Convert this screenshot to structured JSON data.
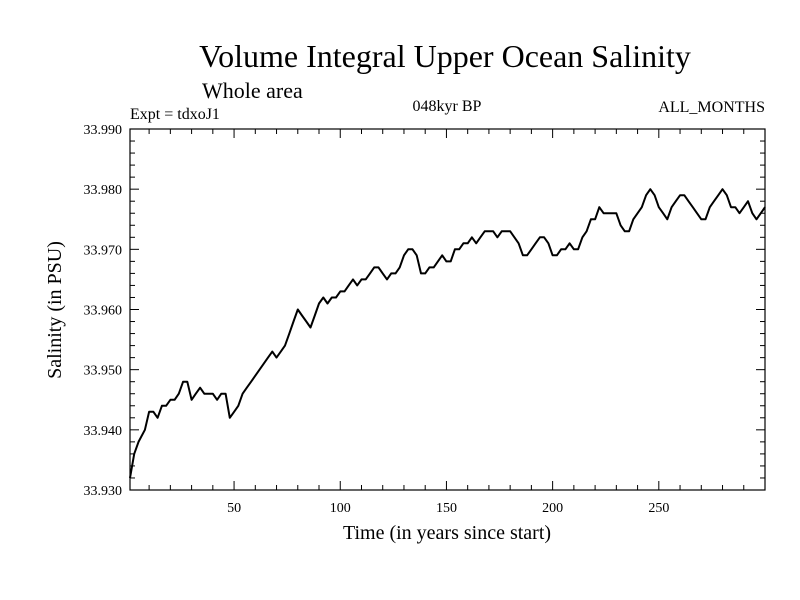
{
  "chart_data": {
    "type": "line",
    "title": "Volume Integral Upper Ocean Salinity",
    "subtitle": "Whole area",
    "experiment": "Expt = tdxoJ1",
    "period": "048kyr BP",
    "months": "ALL_MONTHS",
    "xlabel": "Time (in years since start)",
    "ylabel": "Salinity (in PSU)",
    "xlim": [
      1,
      300
    ],
    "ylim": [
      33.93,
      33.99
    ],
    "x_ticks": [
      50,
      100,
      150,
      200,
      250
    ],
    "x_tick_labels": [
      "50",
      "100",
      "150",
      "200",
      "250"
    ],
    "y_ticks": [
      33.93,
      33.94,
      33.95,
      33.96,
      33.97,
      33.98,
      33.99
    ],
    "y_tick_labels": [
      "33.930",
      "33.940",
      "33.950",
      "33.960",
      "33.970",
      "33.980",
      "33.990"
    ],
    "grid": false,
    "series": [
      {
        "name": "Salinity",
        "color": "#000000",
        "x": [
          1,
          3,
          5,
          8,
          10,
          12,
          14,
          16,
          18,
          20,
          22,
          24,
          26,
          28,
          30,
          32,
          34,
          36,
          38,
          40,
          42,
          44,
          46,
          48,
          50,
          52,
          54,
          56,
          58,
          60,
          62,
          64,
          66,
          68,
          70,
          72,
          74,
          76,
          78,
          80,
          82,
          84,
          86,
          88,
          90,
          92,
          94,
          96,
          98,
          100,
          102,
          104,
          106,
          108,
          110,
          112,
          114,
          116,
          118,
          120,
          122,
          124,
          126,
          128,
          130,
          132,
          134,
          136,
          138,
          140,
          142,
          144,
          146,
          148,
          150,
          152,
          154,
          156,
          158,
          160,
          162,
          164,
          166,
          168,
          170,
          172,
          174,
          176,
          178,
          180,
          182,
          184,
          186,
          188,
          190,
          192,
          194,
          196,
          198,
          200,
          202,
          204,
          206,
          208,
          210,
          212,
          214,
          216,
          218,
          220,
          222,
          224,
          226,
          228,
          230,
          232,
          234,
          236,
          238,
          240,
          242,
          244,
          246,
          248,
          250,
          252,
          254,
          256,
          258,
          260,
          262,
          264,
          266,
          268,
          270,
          272,
          274,
          276,
          278,
          280,
          282,
          284,
          286,
          288,
          290,
          292,
          294,
          296,
          298,
          300
        ],
        "y": [
          33.932,
          33.936,
          33.938,
          33.94,
          33.943,
          33.943,
          33.942,
          33.944,
          33.944,
          33.945,
          33.945,
          33.946,
          33.948,
          33.948,
          33.945,
          33.946,
          33.947,
          33.946,
          33.946,
          33.946,
          33.945,
          33.946,
          33.946,
          33.942,
          33.943,
          33.944,
          33.946,
          33.947,
          33.948,
          33.949,
          33.95,
          33.951,
          33.952,
          33.953,
          33.952,
          33.953,
          33.954,
          33.956,
          33.958,
          33.96,
          33.959,
          33.958,
          33.957,
          33.959,
          33.961,
          33.962,
          33.961,
          33.962,
          33.962,
          33.963,
          33.963,
          33.964,
          33.965,
          33.964,
          33.965,
          33.965,
          33.966,
          33.967,
          33.967,
          33.966,
          33.965,
          33.966,
          33.966,
          33.967,
          33.969,
          33.97,
          33.97,
          33.969,
          33.966,
          33.966,
          33.967,
          33.967,
          33.968,
          33.969,
          33.968,
          33.968,
          33.97,
          33.97,
          33.971,
          33.971,
          33.972,
          33.971,
          33.972,
          33.973,
          33.973,
          33.973,
          33.972,
          33.973,
          33.973,
          33.973,
          33.972,
          33.971,
          33.969,
          33.969,
          33.97,
          33.971,
          33.972,
          33.972,
          33.971,
          33.969,
          33.969,
          33.97,
          33.97,
          33.971,
          33.97,
          33.97,
          33.972,
          33.973,
          33.975,
          33.975,
          33.977,
          33.976,
          33.976,
          33.976,
          33.976,
          33.974,
          33.973,
          33.973,
          33.975,
          33.976,
          33.977,
          33.979,
          33.98,
          33.979,
          33.977,
          33.976,
          33.975,
          33.977,
          33.978,
          33.979,
          33.979,
          33.978,
          33.977,
          33.976,
          33.975,
          33.975,
          33.977,
          33.978,
          33.979,
          33.98,
          33.979,
          33.977,
          33.977,
          33.976,
          33.977,
          33.978,
          33.976,
          33.975,
          33.976,
          33.977
        ]
      }
    ]
  }
}
